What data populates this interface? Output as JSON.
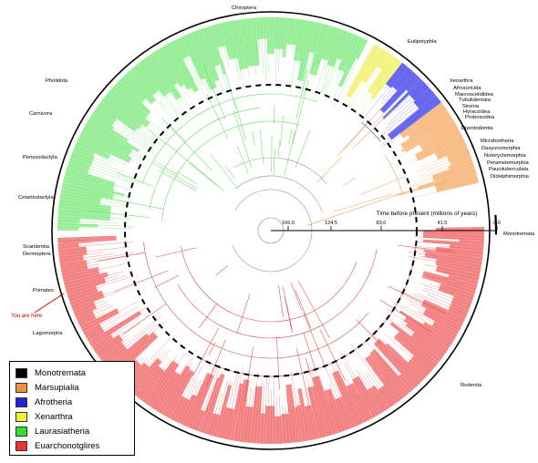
{
  "figure": {
    "axis_title": "Time before present (millions of years)",
    "axis_ticks": [
      "166.0",
      "124.5",
      "83.0",
      "41.5",
      "0.0"
    ],
    "you_are_here": "You are here"
  },
  "clade_labels": [
    {
      "text": "Chiroptera",
      "color": "#000000"
    },
    {
      "text": "Eulipotyphla",
      "color": "#000000"
    },
    {
      "text": "Xenarthra",
      "color": "#000000"
    },
    {
      "text": "Afrosoricida",
      "color": "#000000"
    },
    {
      "text": "Macroscelididea",
      "color": "#000000"
    },
    {
      "text": "Tubulidentata",
      "color": "#000000"
    },
    {
      "text": "Sirenia",
      "color": "#000000"
    },
    {
      "text": "Hyracoidea",
      "color": "#000000"
    },
    {
      "text": "Proboscidea",
      "color": "#000000"
    },
    {
      "text": "Diprotodontia",
      "color": "#000000"
    },
    {
      "text": "Microbiotheria",
      "color": "#000000"
    },
    {
      "text": "Dasyuromorphia",
      "color": "#000000"
    },
    {
      "text": "Notoryctemorphia",
      "color": "#000000"
    },
    {
      "text": "Peramelemorphia",
      "color": "#000000"
    },
    {
      "text": "Paucituberculata",
      "color": "#000000"
    },
    {
      "text": "Didelphimorphia",
      "color": "#000000"
    },
    {
      "text": "Monotremata",
      "color": "#000000"
    },
    {
      "text": "Rodentia",
      "color": "#000000"
    },
    {
      "text": "Lagomorpha",
      "color": "#000000"
    },
    {
      "text": "Primates",
      "color": "#000000"
    },
    {
      "text": "Scandentia",
      "color": "#000000"
    },
    {
      "text": "Dermoptera",
      "color": "#000000"
    },
    {
      "text": "Cetartiodactyla",
      "color": "#000000"
    },
    {
      "text": "Perissodactyla",
      "color": "#000000"
    },
    {
      "text": "Carnivora",
      "color": "#000000"
    },
    {
      "text": "Pholidota",
      "color": "#000000"
    }
  ],
  "legend": {
    "items": [
      {
        "label": "Monotremata",
        "color": "#000000"
      },
      {
        "label": "Marsupialia",
        "color": "#f0913c"
      },
      {
        "label": "Afrotheria",
        "color": "#2222dd"
      },
      {
        "label": "Xenarthra",
        "color": "#f2f23a"
      },
      {
        "label": "Laurasiatheria",
        "color": "#33dd33"
      },
      {
        "label": "Euarchonotglires",
        "color": "#ee3333"
      }
    ]
  },
  "colors": {
    "laurasiatheria_fill": "#9ef09e",
    "laurasiatheria_line": "#66dd66",
    "euarchontoglires_fill": "#f58a8a",
    "euarchontoglires_line": "#e04a4a",
    "marsupialia_fill": "#f8c08c",
    "marsupialia_line": "#f0a05a",
    "afrotheria_fill": "#6a6af0",
    "xenarthra_fill": "#f4f48a",
    "ring": "#000000",
    "you_are_here": "#cc0000"
  }
}
